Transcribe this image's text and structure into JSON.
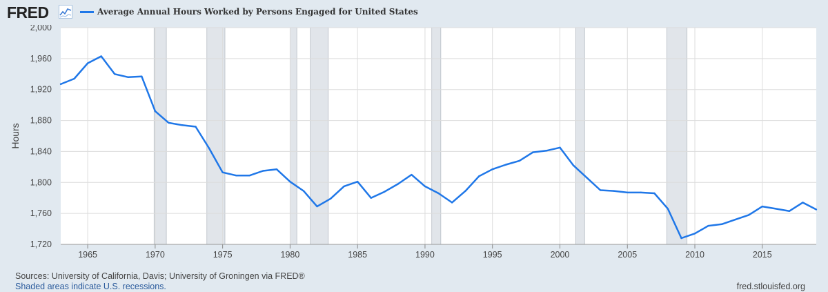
{
  "header": {
    "logo_text": "FRED",
    "logo_icon": "line-chart-icon",
    "legend_label": "Average Annual Hours Worked by Persons Engaged for United States",
    "legend_color": "#1f77e8"
  },
  "footer": {
    "sources": "Sources: University of California, Davis; University of Groningen via FRED®",
    "recession_note": "Shaded areas indicate U.S. recessions.",
    "site": "fred.stlouisfed.org"
  },
  "chart_data": {
    "type": "line",
    "title": "",
    "xlabel": "",
    "ylabel": "Hours",
    "xlim": [
      1963,
      2019
    ],
    "ylim": [
      1720,
      2000
    ],
    "yticks": [
      1720,
      1760,
      1800,
      1840,
      1880,
      1920,
      1960,
      2000
    ],
    "ytick_labels": [
      "1,720",
      "1,760",
      "1,800",
      "1,840",
      "1,880",
      "1,920",
      "1,960",
      "2,000"
    ],
    "xticks": [
      1965,
      1970,
      1975,
      1980,
      1985,
      1990,
      1995,
      2000,
      2005,
      2010,
      2015
    ],
    "xtick_labels": [
      "1965",
      "1970",
      "1975",
      "1980",
      "1985",
      "1990",
      "1995",
      "2000",
      "2005",
      "2010",
      "2015"
    ],
    "grid": true,
    "legend_position": "top-left",
    "colors": {
      "line": "#1f77e8",
      "recession": "#e1e5ea",
      "grid": "#dcdcdc",
      "background": "#ffffff"
    },
    "recessions": [
      [
        1969.92,
        1970.83
      ],
      [
        1973.83,
        1975.17
      ],
      [
        1980.0,
        1980.5
      ],
      [
        1981.5,
        1982.83
      ],
      [
        1990.5,
        1991.17
      ],
      [
        2001.17,
        2001.83
      ],
      [
        2007.92,
        2009.42
      ]
    ],
    "series": [
      {
        "x": [
          1963,
          1964,
          1965,
          1966,
          1967,
          1968,
          1969,
          1970,
          1971,
          1972,
          1973,
          1974,
          1975,
          1976,
          1977,
          1978,
          1979,
          1980,
          1981,
          1982,
          1983,
          1984,
          1985,
          1986,
          1987,
          1988,
          1989,
          1990,
          1991,
          1992,
          1993,
          1994,
          1995,
          1996,
          1997,
          1998,
          1999,
          2000,
          2001,
          2002,
          2003,
          2004,
          2005,
          2006,
          2007,
          2008,
          2009,
          2010,
          2011,
          2012,
          2013,
          2014,
          2015,
          2016,
          2017,
          2018,
          2019
        ],
        "y": [
          1927,
          1934,
          1954,
          1963,
          1940,
          1936,
          1937,
          1892,
          1877,
          1874,
          1872,
          1844,
          1813,
          1809,
          1809,
          1815,
          1817,
          1801,
          1789,
          1769,
          1779,
          1795,
          1801,
          1780,
          1788,
          1798,
          1810,
          1795,
          1786,
          1774,
          1789,
          1808,
          1817,
          1823,
          1828,
          1839,
          1841,
          1845,
          1822,
          1806,
          1790,
          1789,
          1787,
          1787,
          1786,
          1766,
          1728,
          1734,
          1744,
          1746,
          1752,
          1758,
          1769,
          1766,
          1763,
          1774,
          1765
        ]
      }
    ]
  }
}
